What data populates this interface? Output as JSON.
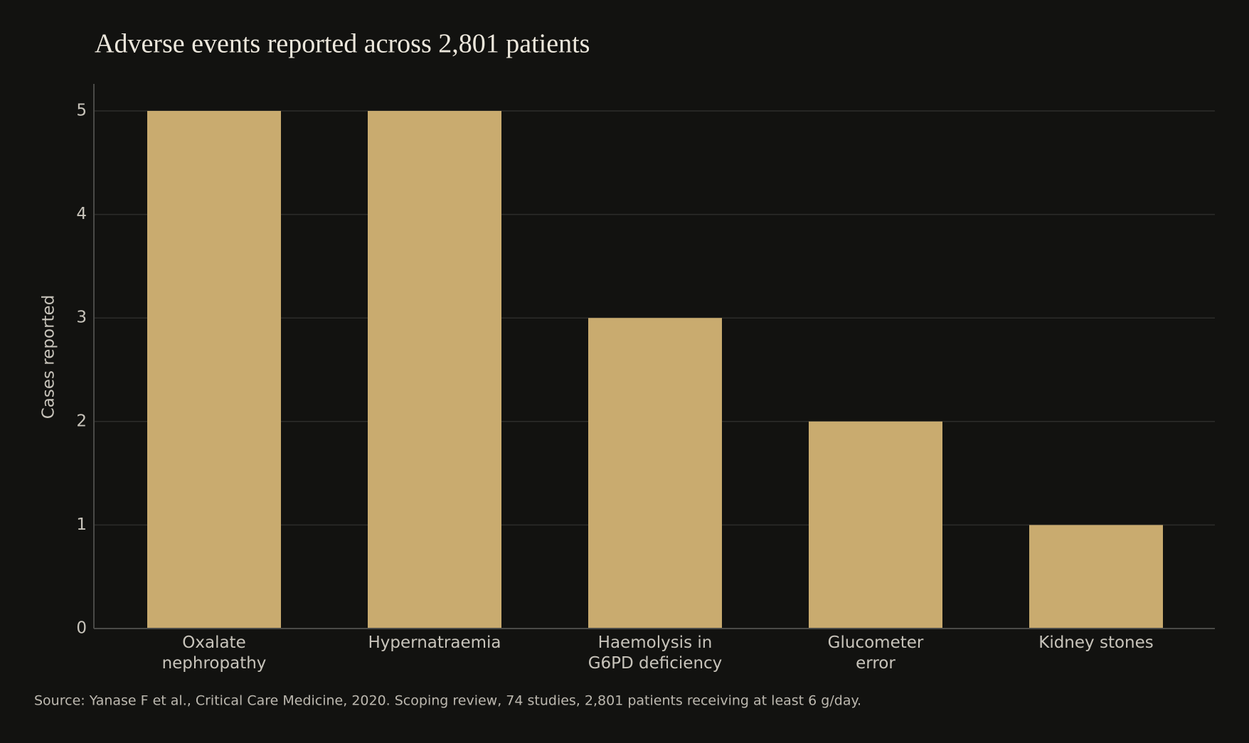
{
  "chart_data": {
    "type": "bar",
    "title": "Adverse events reported across 2,801 patients",
    "ylabel": "Cases reported",
    "categories": [
      [
        "Oxalate",
        "nephropathy"
      ],
      [
        "Hypernatraemia"
      ],
      [
        "Haemolysis in",
        "G6PD deficiency"
      ],
      [
        "Glucometer",
        "error"
      ],
      [
        "Kidney stones"
      ]
    ],
    "values": [
      5,
      5,
      3,
      2,
      1
    ],
    "color": "#c9ab6f",
    "ylim": [
      0,
      5
    ],
    "yticks": [
      0,
      1,
      2,
      3,
      4,
      5
    ],
    "grid": true,
    "source": "Source: Yanase F et al., Critical Care Medicine, 2020. Scoping review, 74 studies, 2,801 patients receiving at least 6 g/day."
  }
}
